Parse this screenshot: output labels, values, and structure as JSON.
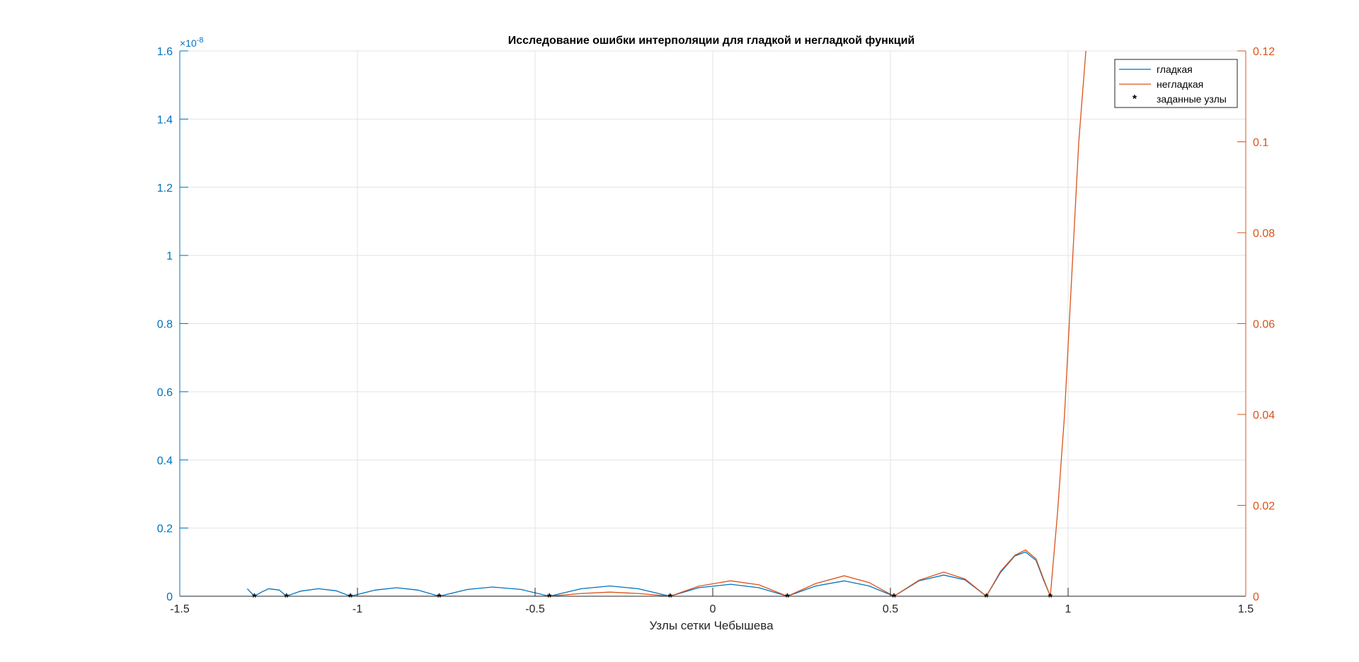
{
  "chart_data": {
    "type": "line",
    "title": "Исследование ошибки интерполяции для гладкой и негладкой функций",
    "xlabel": "Узлы сетки Чебышева",
    "xlim": [
      -1.5,
      1.5
    ],
    "x_ticks": [
      "-1.5",
      "-1",
      "-0.5",
      "0",
      "0.5",
      "1",
      "1.5"
    ],
    "y_left": {
      "ylim": [
        0,
        1.6
      ],
      "exponent_label": "×10",
      "exponent_power": "-8",
      "ticks": [
        "0",
        "0.2",
        "0.4",
        "0.6",
        "0.8",
        "1",
        "1.2",
        "1.4",
        "1.6"
      ],
      "color": "#0072BD"
    },
    "y_right": {
      "ylim": [
        0,
        0.12
      ],
      "ticks": [
        "0",
        "0.02",
        "0.04",
        "0.06",
        "0.08",
        "0.1",
        "0.12"
      ],
      "color": "#D95319"
    },
    "grid": true,
    "legend_position": "top-right",
    "legend": [
      "гладкая",
      "негладкая",
      "заданные узлы"
    ],
    "nodes_x": [
      -1.29,
      -1.2,
      -1.02,
      -0.77,
      -0.46,
      -0.12,
      0.21,
      0.51,
      0.77,
      0.95
    ],
    "series": [
      {
        "name": "гладкая",
        "axis": "left",
        "color": "#0072BD",
        "x": [
          -1.31,
          -1.29,
          -1.27,
          -1.25,
          -1.22,
          -1.2,
          -1.16,
          -1.11,
          -1.06,
          -1.02,
          -0.95,
          -0.89,
          -0.83,
          -0.77,
          -0.69,
          -0.62,
          -0.54,
          -0.46,
          -0.37,
          -0.29,
          -0.21,
          -0.12,
          -0.04,
          0.05,
          0.13,
          0.21,
          0.29,
          0.37,
          0.44,
          0.51,
          0.58,
          0.65,
          0.71,
          0.77,
          0.81,
          0.85,
          0.88,
          0.91,
          0.93,
          0.95
        ],
        "y": [
          0.022,
          0.0,
          0.012,
          0.022,
          0.018,
          0.0,
          0.015,
          0.022,
          0.016,
          0.0,
          0.018,
          0.025,
          0.018,
          0.0,
          0.02,
          0.027,
          0.02,
          0.0,
          0.022,
          0.03,
          0.022,
          0.0,
          0.025,
          0.035,
          0.025,
          0.0,
          0.03,
          0.045,
          0.03,
          0.0,
          0.045,
          0.062,
          0.048,
          0.0,
          0.07,
          0.118,
          0.13,
          0.105,
          0.05,
          0.0
        ]
      },
      {
        "name": "негладкая",
        "axis": "right",
        "color": "#D95319",
        "x": [
          -1.02,
          -0.77,
          -0.6,
          -0.46,
          -0.37,
          -0.29,
          -0.21,
          -0.12,
          -0.04,
          0.05,
          0.13,
          0.21,
          0.29,
          0.37,
          0.44,
          0.51,
          0.58,
          0.65,
          0.71,
          0.77,
          0.81,
          0.85,
          0.88,
          0.91,
          0.93,
          0.95,
          0.97,
          0.99,
          1.01,
          1.03,
          1.05
        ],
        "y": [
          0.0,
          0.0,
          0.0,
          0.0,
          0.0006,
          0.0009,
          0.0006,
          0.0,
          0.0022,
          0.0034,
          0.0025,
          0.0,
          0.0028,
          0.0045,
          0.003,
          0.0,
          0.0035,
          0.0053,
          0.0038,
          0.0,
          0.0055,
          0.009,
          0.0102,
          0.0082,
          0.004,
          0.0,
          0.018,
          0.04,
          0.07,
          0.1,
          0.12
        ]
      }
    ]
  }
}
